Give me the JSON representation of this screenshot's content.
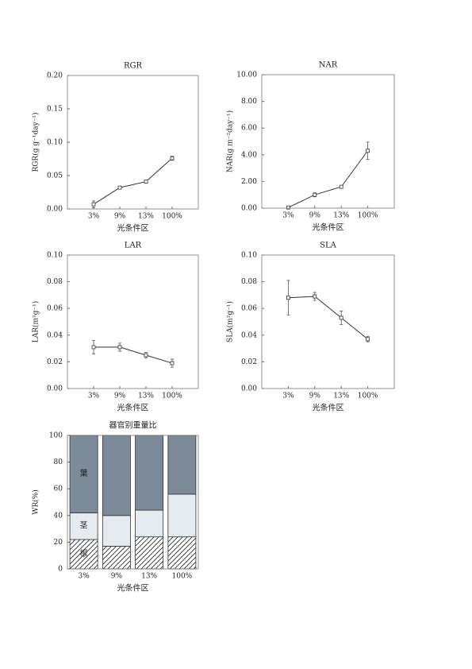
{
  "chart_data": [
    {
      "type": "line",
      "title": "RGR",
      "ylabel": "RGR(g g⁻¹day⁻¹)",
      "xlabel": "光条件区",
      "categories": [
        "3%",
        "9%",
        "13%",
        "100%"
      ],
      "values": [
        0.007,
        0.032,
        0.041,
        0.076
      ],
      "errors": [
        0.005,
        0.002,
        0.002,
        0.003
      ],
      "color": "#333333",
      "ylim": [
        0,
        0.2
      ],
      "yticks": [
        {
          "value": 0,
          "label": "0.00"
        },
        {
          "value": 0.05,
          "label": "0.05"
        },
        {
          "value": 0.1,
          "label": "0.10"
        },
        {
          "value": 0.15,
          "label": "0.15"
        },
        {
          "value": 0.2,
          "label": "0.20"
        }
      ]
    },
    {
      "type": "line",
      "title": "NAR",
      "ylabel": "NAR(g m⁻²day⁻¹)",
      "xlabel": "光条件区",
      "categories": [
        "3%",
        "9%",
        "13%",
        "100%"
      ],
      "values": [
        0.05,
        1.0,
        1.6,
        4.3
      ],
      "errors": [
        0.1,
        0.15,
        0.05,
        0.65
      ],
      "color": "#333333",
      "ylim": [
        0,
        10
      ],
      "yticks": [
        {
          "value": 0,
          "label": "0.00"
        },
        {
          "value": 2,
          "label": "2.00"
        },
        {
          "value": 4,
          "label": "4.00"
        },
        {
          "value": 6,
          "label": "6.00"
        },
        {
          "value": 8,
          "label": "8.00"
        },
        {
          "value": 10,
          "label": "10.00"
        }
      ]
    },
    {
      "type": "line",
      "title": "LAR",
      "ylabel": "LAR(m²g⁻¹)",
      "xlabel": "光条件区",
      "categories": [
        "3%",
        "9%",
        "13%",
        "100%"
      ],
      "values": [
        0.031,
        0.031,
        0.025,
        0.019
      ],
      "errors": [
        0.005,
        0.003,
        0.002,
        0.003
      ],
      "color": "#333333",
      "ylim": [
        0,
        0.1
      ],
      "yticks": [
        {
          "value": 0,
          "label": "0.00"
        },
        {
          "value": 0.02,
          "label": "0.02"
        },
        {
          "value": 0.04,
          "label": "0.04"
        },
        {
          "value": 0.06,
          "label": "0.06"
        },
        {
          "value": 0.08,
          "label": "0.08"
        },
        {
          "value": 0.1,
          "label": "0.10"
        }
      ]
    },
    {
      "type": "line",
      "title": "SLA",
      "ylabel": "SLA(m²g⁻¹)",
      "xlabel": "光条件区",
      "categories": [
        "3%",
        "9%",
        "13%",
        "100%"
      ],
      "values": [
        0.068,
        0.069,
        0.053,
        0.037
      ],
      "errors": [
        0.013,
        0.003,
        0.005,
        0.002
      ],
      "color": "#333333",
      "ylim": [
        0,
        0.1
      ],
      "yticks": [
        {
          "value": 0,
          "label": "0.00"
        },
        {
          "value": 0.02,
          "label": "0.02"
        },
        {
          "value": 0.04,
          "label": "0.04"
        },
        {
          "value": 0.06,
          "label": "0.06"
        },
        {
          "value": 0.08,
          "label": "0.08"
        },
        {
          "value": 0.1,
          "label": "0.10"
        }
      ]
    },
    {
      "type": "bar",
      "stacked": true,
      "title": "器官别重量比",
      "ylabel": "WR(%)",
      "xlabel": "光条件区",
      "categories": [
        "3%",
        "9%",
        "13%",
        "100%"
      ],
      "series": [
        {
          "name": "根",
          "color": "#ffffff",
          "hatch": true,
          "values": [
            22,
            17,
            24,
            24
          ]
        },
        {
          "name": "茎",
          "color": "#e6ebef",
          "values": [
            20,
            23,
            20,
            32
          ]
        },
        {
          "name": "葉",
          "color": "#7d8a98",
          "values": [
            58,
            60,
            56,
            44
          ]
        }
      ],
      "ylim": [
        0,
        100
      ],
      "yticks": [
        0,
        20,
        40,
        60,
        80,
        100
      ]
    }
  ]
}
